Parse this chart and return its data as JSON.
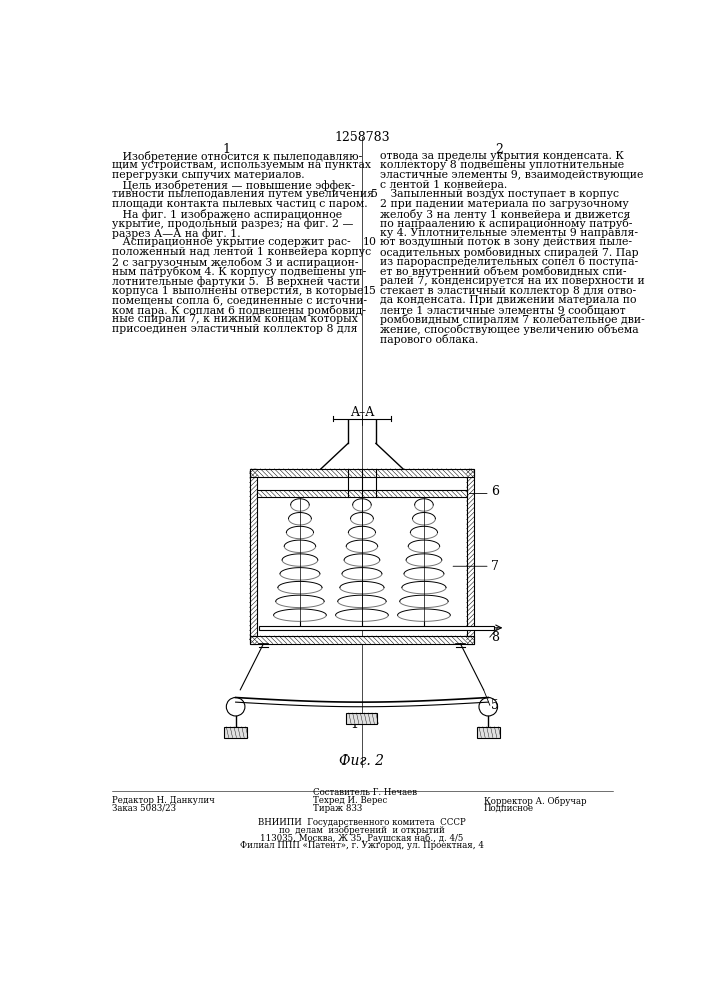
{
  "page_number": "1258783",
  "col1_number": "1",
  "col2_number": "2",
  "bg_color": "#ffffff",
  "text_color": "#000000",
  "col1_text_lines": [
    "   Изобретение относится к пылеподавляю-",
    "щим устройствам, используемым на пунктах",
    "перегрузки сыпучих материалов.",
    "   Цель изобретения — повышение эффек-",
    "тивности пылеподавления путем увеличения",
    "площади контакта пылевых частиц с паром.",
    "   На фиг. 1 изображено аспирационное",
    "укрытие, продольный разрез; на фиг. 2 —",
    "разрез А—А на фиг. 1.",
    "   Аспирационное укрытие содержит рас-",
    "положенный над лентой 1 конвейера корпус",
    "2 с загрузочным желобом 3 и аспирацион-",
    "ным патрубком 4. К корпусу подвешены уп-",
    "лотнительные фартуки 5.  В верхней части",
    "корпуса 1 выполнены отверстия, в которые",
    "помещены сопла 6, соединенные с источни-",
    "ком пара. К соплам 6 подвешены ромбовид-",
    "ные спирали 7, к нижним концам которых",
    "присоединен эластичный коллектор 8 для"
  ],
  "col2_text_lines": [
    "отвода за пределы укрытия конденсата. К",
    "коллектору 8 подвешены уплотнительные",
    "эластичные элементы 9, взаимодействующие",
    "с лентой 1 конвейера.",
    "   Запыленный воздух поступает в корпус",
    "2 при падении материала по загрузочному",
    "желобу 3 на ленту 1 конвейера и движется",
    "по напраалению к аспирационному патруб-",
    "ку 4. Уплотнительные элементы 9 направля-",
    "ют воздушный поток в зону действия пыле-",
    "осадительных ромбовидных спиралей 7. Пар",
    "из парораспределительных сопел 6 поступа-",
    "ет во внутренний объем ромбовидных спи-",
    "ралей 7, конденсируется на их поверхности и",
    "стекает в эластичный коллектор 8 для отво-",
    "да конденсата. При движении материала по",
    "ленте 1 эластичные элементы 9 сообщают",
    "ромбовидным спиралям 7 колебательное дви-",
    "жение, способствующее увеличению объема",
    "парового облака."
  ],
  "line_number_rows": {
    "4": "5",
    "9": "10",
    "14": "15"
  },
  "fig_label": "Фиг. 2",
  "fig_aa_label": "A–A",
  "footer_left": [
    "Редактор Н. Данкулич",
    "Заказ 5083/23"
  ],
  "footer_center": [
    "Составитель Г. Нечаев",
    "Техред И. Верес",
    "Тираж 833"
  ],
  "footer_right": [
    "Корректор А. Обручар",
    "Подписное"
  ],
  "footer_vniiipi": [
    "ВНИИПИ  Государственного комитета  СССР",
    "по  делам  изобретений  и открытий",
    "113035, Москва, Ж 35, Раушская наб., д. 4/5",
    "Филиал ППП «Патент», г. Ужгород, ул. Проектная, 4"
  ]
}
